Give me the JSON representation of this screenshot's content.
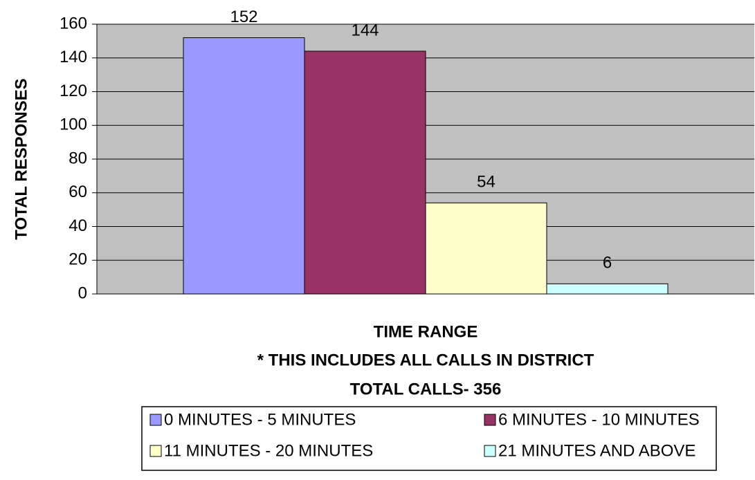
{
  "chart_data": {
    "type": "bar",
    "y_label": "TOTAL RESPONSES",
    "x_label": [
      "TIME RANGE",
      "* THIS INCLUDES ALL CALLS IN DISTRICT",
      "TOTAL CALLS- 356"
    ],
    "series": [
      {
        "name": "0 MINUTES - 5 MINUTES",
        "color": "#9999ff",
        "values": [
          152
        ]
      },
      {
        "name": "6 MINUTES - 10 MINUTES",
        "color": "#993366",
        "values": [
          144
        ]
      },
      {
        "name": "11 MINUTES - 20 MINUTES",
        "color": "#ffffcc",
        "values": [
          54
        ]
      },
      {
        "name": "21 MINUTES AND ABOVE",
        "color": "#ccffff",
        "values": [
          6
        ]
      }
    ],
    "ylim": [
      0,
      160
    ],
    "yticks": [
      0,
      20,
      40,
      60,
      80,
      100,
      120,
      140,
      160
    ],
    "grid": true,
    "legend": "bottom"
  }
}
